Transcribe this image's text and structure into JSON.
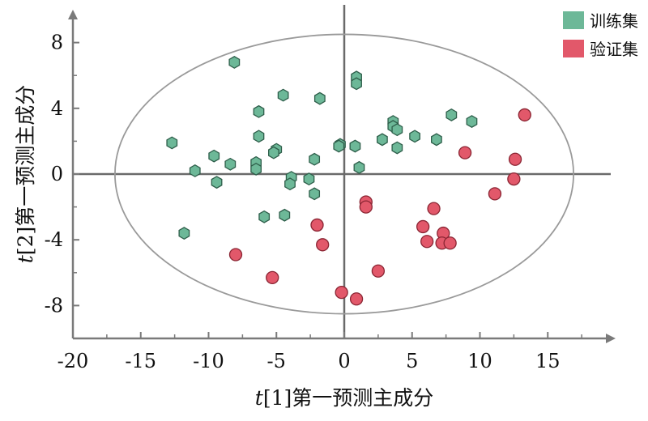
{
  "chart_data": {
    "type": "scatter",
    "xlabel": {
      "var": "t",
      "rest": "[1]第一预测主成分"
    },
    "ylabel": {
      "var": "t",
      "rest": "[2]第一预测主成分"
    },
    "xlim": [
      -20,
      20
    ],
    "ylim": [
      -10,
      10
    ],
    "x_ticks": [
      -20,
      -15,
      -10,
      -5,
      0,
      5,
      10,
      15
    ],
    "y_ticks": [
      -8,
      -4,
      0,
      4,
      8
    ],
    "x_tick_labels": [
      "-20",
      "-15",
      "-10",
      "-5",
      "0",
      "5",
      "10",
      "15"
    ],
    "y_tick_labels": [
      "-8",
      "-4",
      "0",
      "4",
      "8"
    ],
    "legend_position": "top-right",
    "ellipse": {
      "cx": 0,
      "cy": 0,
      "rx": 16.9,
      "ry": 8.5
    },
    "series": [
      {
        "name": "训练集",
        "color": "#6db898",
        "stroke": "#2e5e4a",
        "marker": "hexagon",
        "points": [
          [
            -8.1,
            6.8
          ],
          [
            0.9,
            5.9
          ],
          [
            0.9,
            5.5
          ],
          [
            -4.5,
            4.8
          ],
          [
            -1.8,
            4.6
          ],
          [
            -6.3,
            3.8
          ],
          [
            7.9,
            3.6
          ],
          [
            3.6,
            3.2
          ],
          [
            9.4,
            3.2
          ],
          [
            3.6,
            2.9
          ],
          [
            3.9,
            2.7
          ],
          [
            5.2,
            2.3
          ],
          [
            -6.3,
            2.3
          ],
          [
            2.8,
            2.1
          ],
          [
            6.8,
            2.1
          ],
          [
            -12.7,
            1.9
          ],
          [
            -0.3,
            1.8
          ],
          [
            -0.4,
            1.7
          ],
          [
            0.8,
            1.7
          ],
          [
            3.9,
            1.6
          ],
          [
            -5.0,
            1.5
          ],
          [
            -5.2,
            1.3
          ],
          [
            -9.6,
            1.1
          ],
          [
            -2.2,
            0.9
          ],
          [
            -6.5,
            0.7
          ],
          [
            -8.4,
            0.6
          ],
          [
            1.1,
            0.4
          ],
          [
            -6.5,
            0.3
          ],
          [
            -11.0,
            0.2
          ],
          [
            -3.9,
            -0.2
          ],
          [
            -2.6,
            -0.3
          ],
          [
            -9.4,
            -0.5
          ],
          [
            -4.0,
            -0.6
          ],
          [
            -2.2,
            -1.2
          ],
          [
            -5.9,
            -2.6
          ],
          [
            -4.4,
            -2.5
          ],
          [
            -11.8,
            -3.6
          ]
        ]
      },
      {
        "name": "验证集",
        "color": "#e2586a",
        "stroke": "#8a2533",
        "marker": "circle",
        "points": [
          [
            13.3,
            3.6
          ],
          [
            8.9,
            1.3
          ],
          [
            12.6,
            0.9
          ],
          [
            12.5,
            -0.3
          ],
          [
            11.1,
            -1.2
          ],
          [
            1.6,
            -1.7
          ],
          [
            1.6,
            -2.0
          ],
          [
            6.6,
            -2.1
          ],
          [
            -2.0,
            -3.1
          ],
          [
            5.8,
            -3.2
          ],
          [
            7.3,
            -3.6
          ],
          [
            6.1,
            -4.1
          ],
          [
            7.2,
            -4.2
          ],
          [
            7.8,
            -4.2
          ],
          [
            -1.6,
            -4.3
          ],
          [
            -8.0,
            -4.9
          ],
          [
            2.5,
            -5.9
          ],
          [
            -5.3,
            -6.3
          ],
          [
            -0.2,
            -7.2
          ],
          [
            0.9,
            -7.6
          ]
        ]
      }
    ]
  }
}
